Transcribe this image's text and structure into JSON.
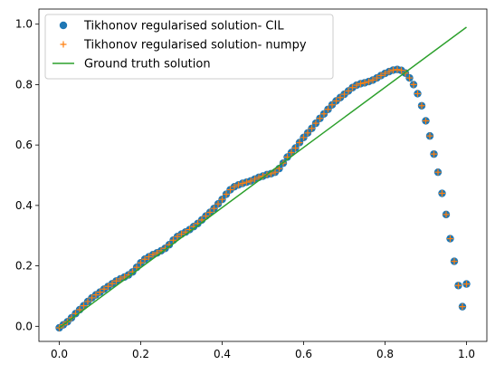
{
  "chart_data": {
    "type": "scatter",
    "title": "",
    "xlabel": "",
    "ylabel": "",
    "xlim": [
      -0.05,
      1.05
    ],
    "ylim": [
      -0.05,
      1.05
    ],
    "xticks": [
      0.0,
      0.2,
      0.4,
      0.6,
      0.8,
      1.0
    ],
    "yticks": [
      0.0,
      0.2,
      0.4,
      0.6,
      0.8,
      1.0
    ],
    "xtick_labels": [
      "0.0",
      "0.2",
      "0.4",
      "0.6",
      "0.8",
      "1.0"
    ],
    "ytick_labels": [
      "0.0",
      "0.2",
      "0.4",
      "0.6",
      "0.8",
      "1.0"
    ],
    "grid": false,
    "legend_position": "top-left",
    "legend": [
      {
        "label": "Tikhonov regularised solution- CIL",
        "marker": "circle",
        "color": "#1f77b4"
      },
      {
        "label": "Tikhonov regularised solution- numpy",
        "marker": "plus",
        "color": "#ff7f0e"
      },
      {
        "label": "Ground truth solution",
        "marker": "line",
        "color": "#2ca02c"
      }
    ],
    "series": [
      {
        "name": "Tikhonov regularised solution- CIL",
        "marker": "circle",
        "color": "#1f77b4",
        "x": [
          0.0,
          0.01,
          0.02,
          0.03,
          0.04,
          0.05,
          0.06,
          0.07,
          0.08,
          0.09,
          0.1,
          0.11,
          0.12,
          0.13,
          0.14,
          0.15,
          0.16,
          0.17,
          0.18,
          0.19,
          0.2,
          0.21,
          0.22,
          0.23,
          0.24,
          0.25,
          0.26,
          0.27,
          0.28,
          0.29,
          0.3,
          0.31,
          0.32,
          0.33,
          0.34,
          0.35,
          0.36,
          0.37,
          0.38,
          0.39,
          0.4,
          0.41,
          0.42,
          0.43,
          0.44,
          0.45,
          0.46,
          0.47,
          0.48,
          0.49,
          0.5,
          0.51,
          0.52,
          0.53,
          0.54,
          0.55,
          0.56,
          0.57,
          0.58,
          0.59,
          0.6,
          0.61,
          0.62,
          0.63,
          0.64,
          0.65,
          0.66,
          0.67,
          0.68,
          0.69,
          0.7,
          0.71,
          0.72,
          0.73,
          0.74,
          0.75,
          0.76,
          0.77,
          0.78,
          0.79,
          0.8,
          0.81,
          0.82,
          0.83,
          0.84,
          0.85,
          0.86,
          0.87,
          0.88,
          0.89,
          0.9,
          0.91,
          0.92,
          0.93,
          0.94,
          0.95,
          0.96,
          0.97,
          0.98,
          0.99,
          1.0
        ],
        "y": [
          -0.005,
          0.005,
          0.015,
          0.028,
          0.042,
          0.055,
          0.068,
          0.082,
          0.094,
          0.104,
          0.113,
          0.123,
          0.132,
          0.141,
          0.15,
          0.157,
          0.163,
          0.17,
          0.18,
          0.195,
          0.21,
          0.222,
          0.23,
          0.237,
          0.243,
          0.25,
          0.258,
          0.27,
          0.285,
          0.297,
          0.305,
          0.312,
          0.32,
          0.33,
          0.34,
          0.352,
          0.365,
          0.377,
          0.39,
          0.405,
          0.42,
          0.437,
          0.452,
          0.462,
          0.468,
          0.473,
          0.477,
          0.481,
          0.487,
          0.493,
          0.497,
          0.502,
          0.505,
          0.51,
          0.522,
          0.54,
          0.56,
          0.575,
          0.59,
          0.608,
          0.625,
          0.64,
          0.655,
          0.672,
          0.688,
          0.703,
          0.718,
          0.733,
          0.746,
          0.757,
          0.768,
          0.779,
          0.79,
          0.798,
          0.803,
          0.806,
          0.81,
          0.815,
          0.822,
          0.83,
          0.837,
          0.843,
          0.848,
          0.85,
          0.847,
          0.838,
          0.822,
          0.8,
          0.77,
          0.73,
          0.68,
          0.63,
          0.57,
          0.51,
          0.44,
          0.37,
          0.29,
          0.215,
          0.135,
          0.065,
          0.14
        ]
      },
      {
        "name": "Tikhonov regularised solution- numpy",
        "marker": "plus",
        "color": "#ff7f0e",
        "x": [
          0.0,
          0.01,
          0.02,
          0.03,
          0.04,
          0.05,
          0.06,
          0.07,
          0.08,
          0.09,
          0.1,
          0.11,
          0.12,
          0.13,
          0.14,
          0.15,
          0.16,
          0.17,
          0.18,
          0.19,
          0.2,
          0.21,
          0.22,
          0.23,
          0.24,
          0.25,
          0.26,
          0.27,
          0.28,
          0.29,
          0.3,
          0.31,
          0.32,
          0.33,
          0.34,
          0.35,
          0.36,
          0.37,
          0.38,
          0.39,
          0.4,
          0.41,
          0.42,
          0.43,
          0.44,
          0.45,
          0.46,
          0.47,
          0.48,
          0.49,
          0.5,
          0.51,
          0.52,
          0.53,
          0.54,
          0.55,
          0.56,
          0.57,
          0.58,
          0.59,
          0.6,
          0.61,
          0.62,
          0.63,
          0.64,
          0.65,
          0.66,
          0.67,
          0.68,
          0.69,
          0.7,
          0.71,
          0.72,
          0.73,
          0.74,
          0.75,
          0.76,
          0.77,
          0.78,
          0.79,
          0.8,
          0.81,
          0.82,
          0.83,
          0.84,
          0.85,
          0.86,
          0.87,
          0.88,
          0.89,
          0.9,
          0.91,
          0.92,
          0.93,
          0.94,
          0.95,
          0.96,
          0.97,
          0.98,
          0.99,
          1.0
        ],
        "y": [
          -0.005,
          0.005,
          0.015,
          0.028,
          0.042,
          0.055,
          0.068,
          0.082,
          0.094,
          0.104,
          0.113,
          0.123,
          0.132,
          0.141,
          0.15,
          0.157,
          0.163,
          0.17,
          0.18,
          0.195,
          0.21,
          0.222,
          0.23,
          0.237,
          0.243,
          0.25,
          0.258,
          0.27,
          0.285,
          0.297,
          0.305,
          0.312,
          0.32,
          0.33,
          0.34,
          0.352,
          0.365,
          0.377,
          0.39,
          0.405,
          0.42,
          0.437,
          0.452,
          0.462,
          0.468,
          0.473,
          0.477,
          0.481,
          0.487,
          0.493,
          0.497,
          0.502,
          0.505,
          0.51,
          0.522,
          0.54,
          0.56,
          0.575,
          0.59,
          0.608,
          0.625,
          0.64,
          0.655,
          0.672,
          0.688,
          0.703,
          0.718,
          0.733,
          0.746,
          0.757,
          0.768,
          0.779,
          0.79,
          0.798,
          0.803,
          0.806,
          0.81,
          0.815,
          0.822,
          0.83,
          0.837,
          0.843,
          0.848,
          0.85,
          0.847,
          0.838,
          0.822,
          0.8,
          0.77,
          0.73,
          0.68,
          0.63,
          0.57,
          0.51,
          0.44,
          0.37,
          0.29,
          0.215,
          0.135,
          0.065,
          0.14
        ]
      },
      {
        "name": "Ground truth solution",
        "marker": "line",
        "color": "#2ca02c",
        "x": [
          0.0,
          1.0
        ],
        "y": [
          -0.005,
          0.99
        ]
      }
    ]
  }
}
